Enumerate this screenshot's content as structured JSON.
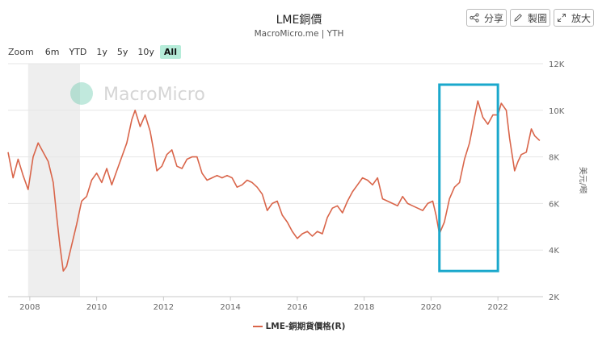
{
  "header": {
    "title": "LME銅價",
    "subtitle": "MacroMicro.me | YTH"
  },
  "toolbar": {
    "share_label": "分享",
    "draw_label": "製圖",
    "enlarge_label": "放大"
  },
  "zoom": {
    "label": "Zoom",
    "options": [
      "6m",
      "YTD",
      "1y",
      "5y",
      "10y",
      "All"
    ],
    "selected": "All"
  },
  "watermark": "MacroMicro",
  "colors": {
    "series": "#d9654a",
    "highlight_box": "#1aa8cc",
    "recession_band": "#eeeeee",
    "grid": "#e6e6e6",
    "zoom_active": "#b6ecd9"
  },
  "chart_data": {
    "type": "line",
    "title": "LME銅價",
    "ylabel": "美元/噸",
    "ylim": [
      2000,
      12000
    ],
    "y_ticks": [
      "2K",
      "4K",
      "6K",
      "8K",
      "10K",
      "12K"
    ],
    "y_tick_values": [
      2000,
      4000,
      6000,
      8000,
      10000,
      12000
    ],
    "xlim": [
      2007.35,
      2023.35
    ],
    "x_ticks": [
      "2008",
      "2010",
      "2012",
      "2014",
      "2016",
      "2018",
      "2020",
      "2022"
    ],
    "x_tick_values": [
      2008,
      2010,
      2012,
      2014,
      2016,
      2018,
      2020,
      2022
    ],
    "shaded_band": {
      "start": 2007.95,
      "end": 2009.5,
      "meaning": "recession"
    },
    "highlight_box": {
      "x_start": 2020.25,
      "x_end": 2022.0,
      "y_low": 3100,
      "y_high": 11100
    },
    "series": [
      {
        "name": "LME-銅期貨價格(R)",
        "x": [
          2007.35,
          2007.5,
          2007.65,
          2007.8,
          2007.95,
          2008.1,
          2008.25,
          2008.4,
          2008.55,
          2008.7,
          2008.8,
          2008.9,
          2009.0,
          2009.1,
          2009.25,
          2009.4,
          2009.55,
          2009.7,
          2009.85,
          2010.0,
          2010.15,
          2010.3,
          2010.45,
          2010.6,
          2010.75,
          2010.9,
          2011.05,
          2011.15,
          2011.3,
          2011.45,
          2011.6,
          2011.7,
          2011.8,
          2011.95,
          2012.1,
          2012.25,
          2012.4,
          2012.55,
          2012.7,
          2012.85,
          2013.0,
          2013.15,
          2013.3,
          2013.45,
          2013.6,
          2013.75,
          2013.9,
          2014.05,
          2014.2,
          2014.35,
          2014.5,
          2014.65,
          2014.8,
          2014.95,
          2015.1,
          2015.25,
          2015.4,
          2015.55,
          2015.7,
          2015.85,
          2016.0,
          2016.15,
          2016.3,
          2016.45,
          2016.6,
          2016.75,
          2016.9,
          2017.05,
          2017.2,
          2017.35,
          2017.5,
          2017.65,
          2017.8,
          2017.95,
          2018.1,
          2018.25,
          2018.4,
          2018.55,
          2018.7,
          2018.85,
          2019.0,
          2019.15,
          2019.3,
          2019.45,
          2019.6,
          2019.75,
          2019.9,
          2020.05,
          2020.15,
          2020.25,
          2020.4,
          2020.55,
          2020.7,
          2020.85,
          2021.0,
          2021.15,
          2021.3,
          2021.4,
          2021.55,
          2021.7,
          2021.85,
          2022.0,
          2022.1,
          2022.25,
          2022.35,
          2022.5,
          2022.6,
          2022.7,
          2022.85,
          2023.0,
          2023.1,
          2023.25
        ],
        "y": [
          8200,
          7100,
          7900,
          7200,
          6600,
          8000,
          8600,
          8200,
          7800,
          6900,
          5500,
          4200,
          3100,
          3300,
          4200,
          5100,
          6100,
          6300,
          7000,
          7300,
          6900,
          7500,
          6800,
          7400,
          8000,
          8600,
          9600,
          10000,
          9300,
          9800,
          9100,
          8300,
          7400,
          7600,
          8100,
          8300,
          7600,
          7500,
          7900,
          8000,
          8000,
          7300,
          7000,
          7100,
          7200,
          7100,
          7200,
          7100,
          6700,
          6800,
          7000,
          6900,
          6700,
          6400,
          5700,
          6000,
          6100,
          5500,
          5200,
          4800,
          4500,
          4700,
          4800,
          4600,
          4800,
          4700,
          5400,
          5800,
          5900,
          5600,
          6100,
          6500,
          6800,
          7100,
          7000,
          6800,
          7100,
          6200,
          6100,
          6000,
          5900,
          6300,
          6000,
          5900,
          5800,
          5700,
          6000,
          6100,
          5500,
          4700,
          5200,
          6200,
          6700,
          6900,
          7900,
          8600,
          9700,
          10400,
          9700,
          9400,
          9800,
          9800,
          10300,
          10000,
          8800,
          7400,
          7800,
          8100,
          8200,
          9200,
          8900,
          8700
        ]
      }
    ]
  }
}
